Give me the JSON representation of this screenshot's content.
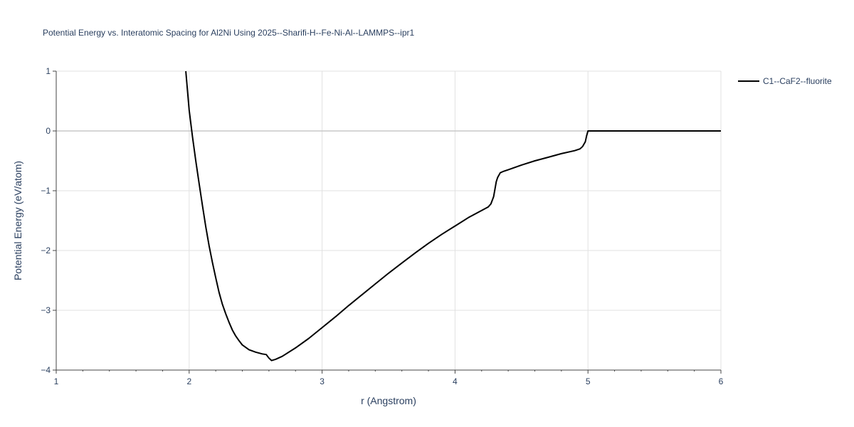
{
  "chart_data": {
    "type": "line",
    "title": "Potential Energy vs. Interatomic Spacing for Al2Ni Using 2025--Sharifi-H--Fe-Ni-Al--LAMMPS--ipr1",
    "xlabel": "r (Angstrom)",
    "ylabel": "Potential Energy (eV/atom)",
    "xlim": [
      1,
      6
    ],
    "ylim": [
      -4,
      1
    ],
    "xticks": [
      1,
      2,
      3,
      4,
      5,
      6
    ],
    "xtick_labels": [
      "1",
      "2",
      "3",
      "4",
      "5",
      "6"
    ],
    "yticks": [
      1,
      0,
      -1,
      -2,
      -3,
      -4
    ],
    "ytick_labels": [
      "1",
      "0",
      "−1",
      "−2",
      "−3",
      "−4"
    ],
    "grid": true,
    "legend_position": "top-right",
    "series": [
      {
        "name": "C1--CaF2--fluorite",
        "color": "#000000",
        "x": [
          1.975,
          2.0,
          2.025,
          2.05,
          2.075,
          2.1,
          2.125,
          2.15,
          2.175,
          2.2,
          2.225,
          2.25,
          2.275,
          2.3,
          2.325,
          2.35,
          2.375,
          2.4,
          2.45,
          2.5,
          2.55,
          2.58,
          2.6,
          2.62,
          2.65,
          2.7,
          2.8,
          2.9,
          3.0,
          3.1,
          3.2,
          3.3,
          3.4,
          3.5,
          3.6,
          3.7,
          3.8,
          3.9,
          4.0,
          4.1,
          4.2,
          4.25,
          4.27,
          4.29,
          4.3,
          4.31,
          4.32,
          4.34,
          4.36,
          4.4,
          4.5,
          4.6,
          4.7,
          4.8,
          4.9,
          4.94,
          4.96,
          4.98,
          4.99,
          5.0,
          5.2,
          5.4,
          5.6,
          5.8,
          6.0
        ],
        "y": [
          1.0,
          0.35,
          -0.1,
          -0.5,
          -0.88,
          -1.25,
          -1.6,
          -1.92,
          -2.2,
          -2.46,
          -2.7,
          -2.9,
          -3.06,
          -3.2,
          -3.33,
          -3.43,
          -3.51,
          -3.58,
          -3.66,
          -3.7,
          -3.73,
          -3.74,
          -3.8,
          -3.84,
          -3.82,
          -3.77,
          -3.63,
          -3.47,
          -3.29,
          -3.11,
          -2.92,
          -2.74,
          -2.56,
          -2.38,
          -2.21,
          -2.04,
          -1.88,
          -1.73,
          -1.59,
          -1.45,
          -1.33,
          -1.27,
          -1.22,
          -1.1,
          -0.98,
          -0.85,
          -0.78,
          -0.7,
          -0.68,
          -0.65,
          -0.57,
          -0.5,
          -0.44,
          -0.38,
          -0.33,
          -0.3,
          -0.26,
          -0.18,
          -0.08,
          0.0,
          0.0,
          0.0,
          0.0,
          0.0,
          0.0
        ]
      }
    ]
  }
}
